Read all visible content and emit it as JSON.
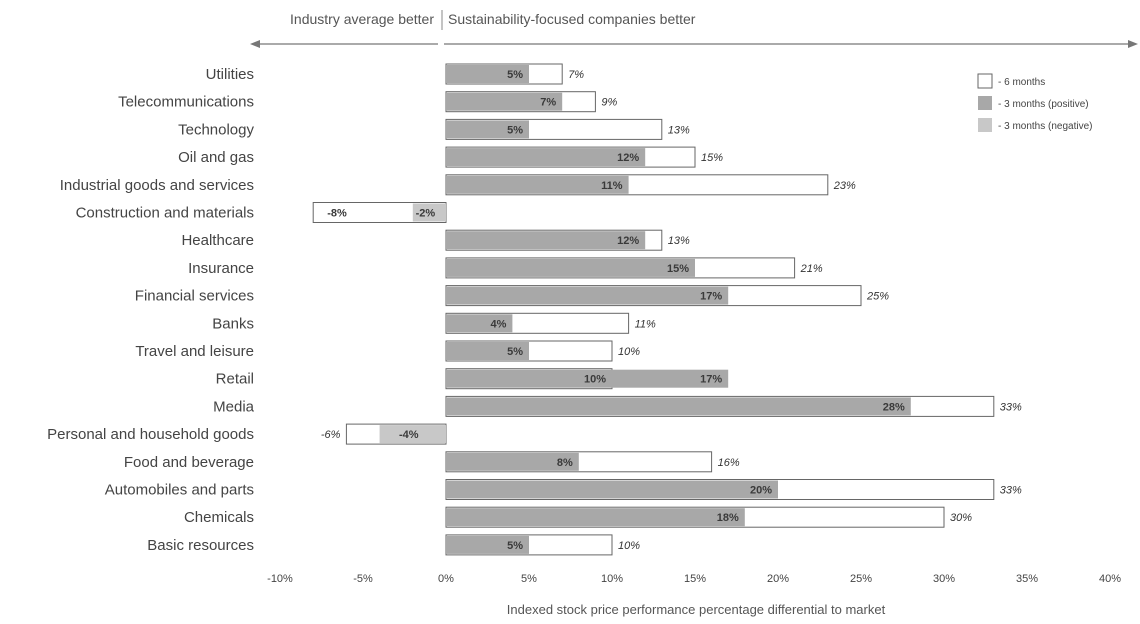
{
  "chart_data": {
    "type": "bar",
    "orientation": "horizontal",
    "xlabel": "Indexed stock price performance percentage differential to market",
    "header_left": "Industry average better",
    "header_right": "Sustainability-focused companies better",
    "xlim": [
      -10,
      40
    ],
    "x_ticks": [
      "-10%",
      "-5%",
      "0%",
      "5%",
      "10%",
      "15%",
      "20%",
      "25%",
      "30%",
      "35%",
      "40%"
    ],
    "x_tick_values": [
      -10,
      -5,
      0,
      5,
      10,
      15,
      20,
      25,
      30,
      35,
      40
    ],
    "grid": false,
    "legend_position": "top-right",
    "legend": [
      {
        "key": "6m",
        "label": "- 6 months",
        "color": "#ffffff"
      },
      {
        "key": "3m_pos",
        "label": "- 3 months (positive)",
        "color": "#a8a8a8"
      },
      {
        "key": "3m_neg",
        "label": "- 3 months (negative)",
        "color": "#c8c8c8"
      }
    ],
    "categories": [
      "Utilities",
      "Telecommunications",
      "Technology",
      "Oil and gas",
      "Industrial goods and services",
      "Construction and materials",
      "Healthcare",
      "Insurance",
      "Financial services",
      "Banks",
      "Travel and leisure",
      "Retail",
      "Media",
      "Personal and household goods",
      "Food and beverage",
      "Automobiles and parts",
      "Chemicals",
      "Basic resources"
    ],
    "series": [
      {
        "name": "- 6 months",
        "values": [
          7,
          9,
          13,
          15,
          23,
          -8,
          13,
          21,
          25,
          11,
          10,
          10,
          33,
          -6,
          16,
          33,
          30,
          10
        ],
        "labels": [
          "7%",
          "9%",
          "13%",
          "15%",
          "23%",
          "-8%",
          "13%",
          "21%",
          "25%",
          "11%",
          "10%",
          "10%",
          "33%",
          "-6%",
          "16%",
          "33%",
          "30%",
          "10%"
        ]
      },
      {
        "name": "- 3 months",
        "values": [
          5,
          7,
          5,
          12,
          11,
          -2,
          12,
          15,
          17,
          4,
          5,
          17,
          28,
          -4,
          8,
          20,
          18,
          5
        ],
        "labels": [
          "5%",
          "7%",
          "5%",
          "12%",
          "11%",
          "-2%",
          "12%",
          "15%",
          "17%",
          "4%",
          "5%",
          "17%",
          "28%",
          "-4%",
          "8%",
          "20%",
          "18%",
          "5%"
        ]
      }
    ]
  }
}
